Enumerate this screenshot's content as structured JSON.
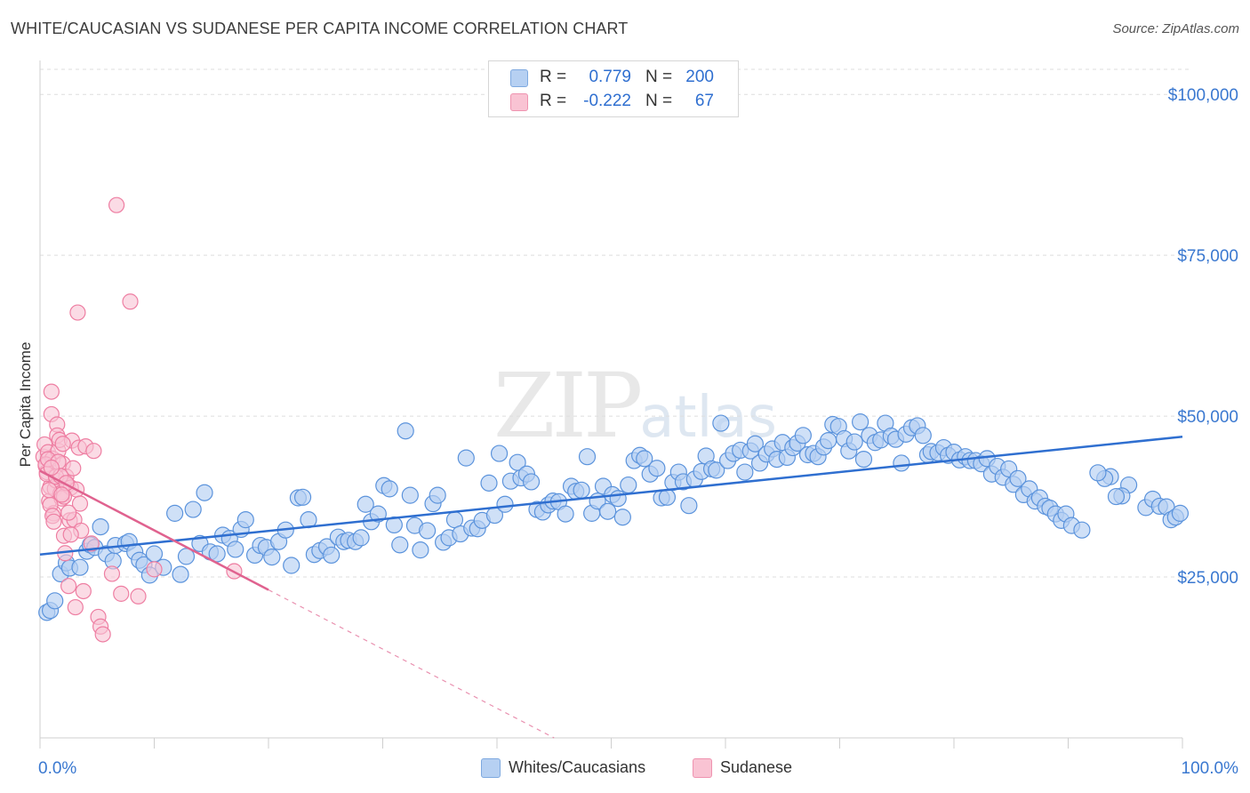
{
  "title": "WHITE/CAUCASIAN VS SUDANESE PER CAPITA INCOME CORRELATION CHART",
  "source": "Source: ZipAtlas.com",
  "watermark": {
    "zip": "ZIP",
    "atlas": "atlas"
  },
  "colors": {
    "blue": "#5b93dc",
    "blue_fill": "#b6d0f2",
    "blue_line": "#2f6fd0",
    "pink": "#ee7ea2",
    "pink_fill": "#f9c3d3",
    "pink_line": "#e0628f",
    "axis_label": "#3a78d0",
    "grid": "#dedede"
  },
  "legend_top": [
    {
      "r_label": "R =",
      "r_value": "0.779",
      "n_label": "N =",
      "n_value": "200"
    },
    {
      "r_label": "R =",
      "r_value": "-0.222",
      "n_label": "N =",
      "n_value": "67"
    }
  ],
  "legend_bottom": [
    "Whites/Caucasians",
    "Sudanese"
  ],
  "chart_data": {
    "type": "scatter",
    "title": "WHITE/CAUCASIAN VS SUDANESE PER CAPITA INCOME CORRELATION CHART",
    "xlabel": "",
    "ylabel": "Per Capita Income",
    "xlim": [
      0,
      100
    ],
    "ylim": [
      0,
      105000
    ],
    "x_tick_labels": [
      "0.0%",
      "100.0%"
    ],
    "y_ticks": [
      25000,
      50000,
      75000,
      100000
    ],
    "y_tick_labels": [
      "$25,000",
      "$50,000",
      "$75,000",
      "$100,000"
    ],
    "grid": true,
    "series": [
      {
        "name": "Whites/Caucasians",
        "r": 0.779,
        "n": 200,
        "trend": {
          "x": [
            0,
            100
          ],
          "y": [
            28500,
            46800
          ]
        },
        "points": [
          [
            0.6,
            19500
          ],
          [
            0.9,
            19800
          ],
          [
            1.3,
            21300
          ],
          [
            1.8,
            25500
          ],
          [
            2.3,
            27200
          ],
          [
            2.6,
            26400
          ],
          [
            3.5,
            26500
          ],
          [
            4.1,
            29000
          ],
          [
            4.4,
            30000
          ],
          [
            4.8,
            29600
          ],
          [
            5.3,
            32800
          ],
          [
            5.8,
            28600
          ],
          [
            6.4,
            27500
          ],
          [
            6.6,
            29900
          ],
          [
            7.5,
            30200
          ],
          [
            7.8,
            30500
          ],
          [
            8.3,
            28900
          ],
          [
            8.7,
            27600
          ],
          [
            9.1,
            26900
          ],
          [
            9.6,
            25300
          ],
          [
            10.0,
            28600
          ],
          [
            10.8,
            26500
          ],
          [
            11.8,
            34900
          ],
          [
            12.3,
            25400
          ],
          [
            12.8,
            28200
          ],
          [
            13.4,
            35500
          ],
          [
            14.0,
            30200
          ],
          [
            14.4,
            38100
          ],
          [
            14.9,
            28900
          ],
          [
            15.5,
            28600
          ],
          [
            16.0,
            31500
          ],
          [
            16.6,
            31000
          ],
          [
            17.1,
            29300
          ],
          [
            17.6,
            32400
          ],
          [
            18.0,
            33900
          ],
          [
            18.8,
            28400
          ],
          [
            19.3,
            29900
          ],
          [
            19.8,
            29600
          ],
          [
            20.3,
            28100
          ],
          [
            20.9,
            30500
          ],
          [
            21.5,
            32300
          ],
          [
            22.0,
            26800
          ],
          [
            22.6,
            37300
          ],
          [
            23.0,
            37400
          ],
          [
            23.5,
            33900
          ],
          [
            24.0,
            28500
          ],
          [
            24.5,
            29100
          ],
          [
            25.1,
            29700
          ],
          [
            25.5,
            28400
          ],
          [
            26.1,
            31200
          ],
          [
            26.6,
            30500
          ],
          [
            27.0,
            30700
          ],
          [
            27.6,
            30500
          ],
          [
            28.1,
            31100
          ],
          [
            28.5,
            36300
          ],
          [
            29.0,
            33600
          ],
          [
            29.6,
            34800
          ],
          [
            30.1,
            39200
          ],
          [
            30.6,
            38700
          ],
          [
            31.0,
            33100
          ],
          [
            31.5,
            30000
          ],
          [
            32.0,
            47700
          ],
          [
            32.4,
            37700
          ],
          [
            32.8,
            33000
          ],
          [
            33.3,
            29200
          ],
          [
            33.9,
            32200
          ],
          [
            34.4,
            36400
          ],
          [
            34.8,
            37700
          ],
          [
            35.3,
            30400
          ],
          [
            35.8,
            31100
          ],
          [
            36.3,
            33900
          ],
          [
            36.8,
            31700
          ],
          [
            37.3,
            43500
          ],
          [
            37.8,
            32600
          ],
          [
            38.3,
            32500
          ],
          [
            38.7,
            33800
          ],
          [
            39.3,
            39600
          ],
          [
            39.8,
            34600
          ],
          [
            40.2,
            44200
          ],
          [
            40.7,
            36300
          ],
          [
            41.2,
            39900
          ],
          [
            41.8,
            42800
          ],
          [
            42.1,
            40400
          ],
          [
            42.6,
            41000
          ],
          [
            43.0,
            39800
          ],
          [
            43.5,
            35500
          ],
          [
            44.0,
            35100
          ],
          [
            44.5,
            36200
          ],
          [
            44.9,
            36800
          ],
          [
            45.4,
            36700
          ],
          [
            46.0,
            34800
          ],
          [
            46.5,
            39100
          ],
          [
            46.9,
            38300
          ],
          [
            47.4,
            38500
          ],
          [
            47.9,
            43700
          ],
          [
            48.3,
            34900
          ],
          [
            48.8,
            36800
          ],
          [
            49.3,
            39100
          ],
          [
            49.7,
            35200
          ],
          [
            50.1,
            37800
          ],
          [
            50.6,
            37200
          ],
          [
            51.0,
            34300
          ],
          [
            51.5,
            39300
          ],
          [
            52.0,
            43100
          ],
          [
            52.5,
            43900
          ],
          [
            52.9,
            43400
          ],
          [
            53.4,
            41000
          ],
          [
            54.0,
            41900
          ],
          [
            54.4,
            37300
          ],
          [
            54.9,
            37400
          ],
          [
            55.4,
            39700
          ],
          [
            55.9,
            41300
          ],
          [
            56.3,
            39800
          ],
          [
            56.8,
            36100
          ],
          [
            57.3,
            40200
          ],
          [
            57.9,
            41400
          ],
          [
            58.3,
            43800
          ],
          [
            58.8,
            41800
          ],
          [
            59.2,
            41600
          ],
          [
            59.6,
            48900
          ],
          [
            60.2,
            43100
          ],
          [
            60.7,
            44200
          ],
          [
            61.3,
            44700
          ],
          [
            61.7,
            41300
          ],
          [
            62.2,
            44600
          ],
          [
            62.6,
            45700
          ],
          [
            63.0,
            42700
          ],
          [
            63.6,
            44100
          ],
          [
            64.1,
            44900
          ],
          [
            64.5,
            43300
          ],
          [
            65.0,
            45900
          ],
          [
            65.4,
            43600
          ],
          [
            65.9,
            45100
          ],
          [
            66.3,
            45800
          ],
          [
            66.8,
            47000
          ],
          [
            67.2,
            44000
          ],
          [
            67.7,
            44200
          ],
          [
            68.1,
            43700
          ],
          [
            68.6,
            45200
          ],
          [
            69.0,
            46200
          ],
          [
            69.4,
            48700
          ],
          [
            69.9,
            48400
          ],
          [
            70.4,
            46500
          ],
          [
            70.8,
            44600
          ],
          [
            71.3,
            46000
          ],
          [
            71.8,
            49100
          ],
          [
            72.1,
            43300
          ],
          [
            72.6,
            47000
          ],
          [
            73.1,
            45900
          ],
          [
            73.6,
            46300
          ],
          [
            74.0,
            48900
          ],
          [
            74.5,
            46900
          ],
          [
            74.9,
            46400
          ],
          [
            75.4,
            42700
          ],
          [
            75.8,
            47200
          ],
          [
            76.3,
            48200
          ],
          [
            76.8,
            48500
          ],
          [
            77.3,
            47000
          ],
          [
            77.7,
            44000
          ],
          [
            78.0,
            44500
          ],
          [
            78.6,
            44300
          ],
          [
            79.1,
            45100
          ],
          [
            79.5,
            43900
          ],
          [
            80.0,
            44400
          ],
          [
            80.5,
            43200
          ],
          [
            81.0,
            43700
          ],
          [
            81.4,
            43100
          ],
          [
            81.9,
            43100
          ],
          [
            82.4,
            42600
          ],
          [
            82.9,
            43400
          ],
          [
            83.3,
            41000
          ],
          [
            83.8,
            42200
          ],
          [
            84.3,
            40500
          ],
          [
            84.8,
            41800
          ],
          [
            85.2,
            39400
          ],
          [
            85.6,
            40300
          ],
          [
            86.1,
            37800
          ],
          [
            86.6,
            38700
          ],
          [
            87.1,
            36800
          ],
          [
            87.5,
            37300
          ],
          [
            88.0,
            36000
          ],
          [
            88.4,
            35700
          ],
          [
            88.9,
            34800
          ],
          [
            89.4,
            33800
          ],
          [
            89.8,
            34800
          ],
          [
            90.3,
            33000
          ],
          [
            91.2,
            32300
          ],
          [
            96.8,
            35800
          ],
          [
            97.4,
            37100
          ],
          [
            98.0,
            36000
          ],
          [
            98.6,
            35900
          ],
          [
            99.0,
            33900
          ],
          [
            99.4,
            34300
          ],
          [
            99.8,
            34900
          ],
          [
            95.3,
            39300
          ],
          [
            94.7,
            37600
          ],
          [
            94.2,
            37500
          ],
          [
            93.7,
            40600
          ],
          [
            93.2,
            40300
          ],
          [
            92.6,
            41200
          ]
        ]
      },
      {
        "name": "Sudanese",
        "r": -0.222,
        "n": 67,
        "trend": {
          "x": [
            0,
            20
          ],
          "y": [
            41500,
            23000
          ]
        },
        "trend_extended": {
          "x": [
            20,
            45
          ],
          "y": [
            23000,
            0
          ]
        },
        "points": [
          [
            0.3,
            43700
          ],
          [
            0.4,
            45600
          ],
          [
            0.5,
            42300
          ],
          [
            0.6,
            41300
          ],
          [
            0.7,
            44400
          ],
          [
            0.8,
            36800
          ],
          [
            0.9,
            39000
          ],
          [
            1.0,
            53800
          ],
          [
            1.0,
            50300
          ],
          [
            1.1,
            43400
          ],
          [
            1.2,
            34900
          ],
          [
            1.3,
            38700
          ],
          [
            1.4,
            40000
          ],
          [
            1.5,
            48700
          ],
          [
            1.5,
            47000
          ],
          [
            1.6,
            44600
          ],
          [
            1.7,
            46300
          ],
          [
            1.8,
            38000
          ],
          [
            1.9,
            37200
          ],
          [
            2.0,
            42600
          ],
          [
            2.1,
            31400
          ],
          [
            2.2,
            28700
          ],
          [
            2.3,
            40600
          ],
          [
            2.4,
            39300
          ],
          [
            2.5,
            23600
          ],
          [
            2.6,
            33800
          ],
          [
            2.7,
            38900
          ],
          [
            2.8,
            46200
          ],
          [
            2.9,
            41900
          ],
          [
            3.0,
            33900
          ],
          [
            3.1,
            20300
          ],
          [
            3.2,
            38600
          ],
          [
            3.3,
            66100
          ],
          [
            3.4,
            45100
          ],
          [
            3.5,
            36400
          ],
          [
            3.6,
            32200
          ],
          [
            3.8,
            22800
          ],
          [
            4.0,
            45300
          ],
          [
            4.5,
            30200
          ],
          [
            4.7,
            44600
          ],
          [
            5.1,
            18800
          ],
          [
            5.3,
            17300
          ],
          [
            5.5,
            16100
          ],
          [
            6.3,
            25500
          ],
          [
            6.7,
            82800
          ],
          [
            7.1,
            22400
          ],
          [
            7.9,
            67800
          ],
          [
            8.6,
            22000
          ],
          [
            0.5,
            42500
          ],
          [
            0.6,
            41000
          ],
          [
            0.7,
            43300
          ],
          [
            0.9,
            36200
          ],
          [
            1.1,
            34500
          ],
          [
            1.2,
            33600
          ],
          [
            1.4,
            40600
          ],
          [
            1.6,
            42900
          ],
          [
            1.8,
            40700
          ],
          [
            2.0,
            45700
          ],
          [
            2.1,
            37500
          ],
          [
            2.3,
            39600
          ],
          [
            2.5,
            35000
          ],
          [
            2.7,
            31600
          ],
          [
            0.8,
            38500
          ],
          [
            1.0,
            42000
          ],
          [
            1.9,
            37800
          ],
          [
            17.0,
            25900
          ],
          [
            10.0,
            26200
          ]
        ]
      }
    ]
  }
}
